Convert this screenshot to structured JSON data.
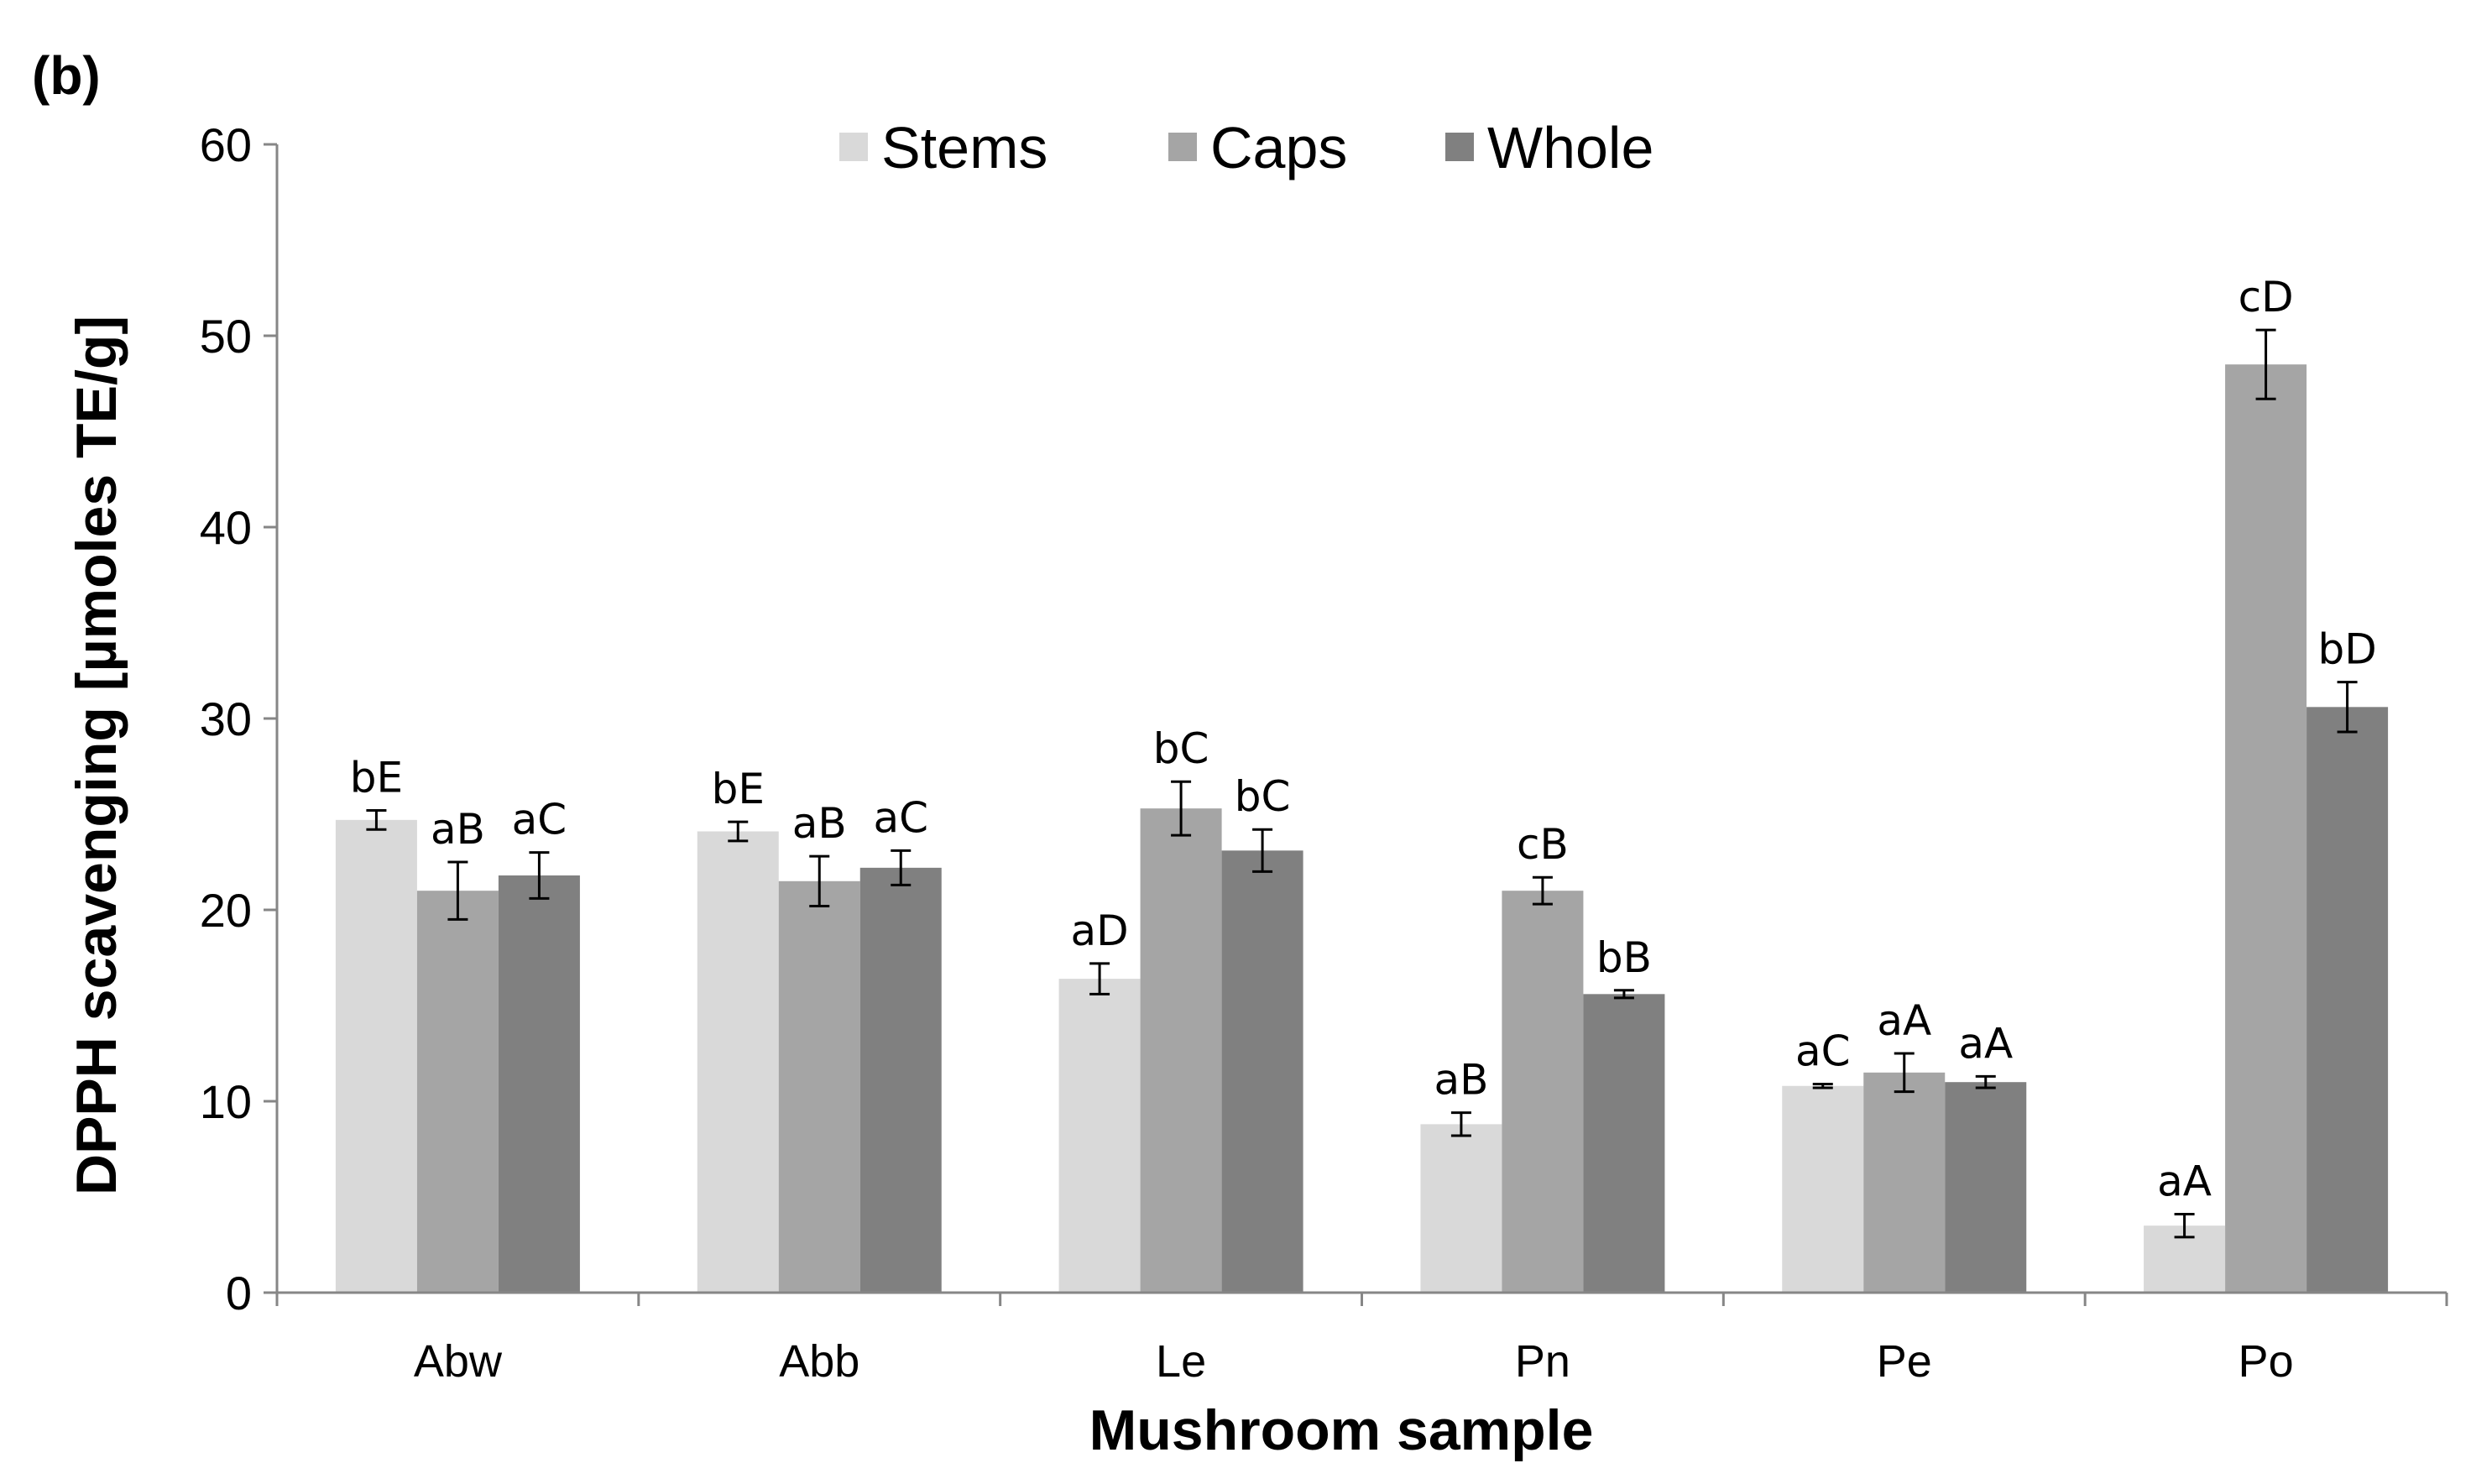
{
  "panel_label": "(b)",
  "chart_data": {
    "type": "bar",
    "title": "",
    "xlabel": "Mushroom sample",
    "ylabel": "DPPH scavenging  [µmoles TE/g]",
    "ylim": [
      0,
      60
    ],
    "yticks": [
      0,
      10,
      20,
      30,
      40,
      50,
      60
    ],
    "grid": false,
    "legend_position": "top-center",
    "categories": [
      "Abw",
      "Abb",
      "Le",
      "Pn",
      "Pe",
      "Po"
    ],
    "series": [
      {
        "name": "Stems",
        "color": "#d9d9d9",
        "values": [
          24.7,
          24.1,
          16.4,
          8.8,
          10.8,
          3.5
        ],
        "errors": [
          0.5,
          0.5,
          0.8,
          0.6,
          0.1,
          0.6
        ],
        "labels": [
          "bE",
          "bE",
          "aD",
          "aB",
          "aC",
          "aA"
        ]
      },
      {
        "name": "Caps",
        "color": "#a5a5a5",
        "values": [
          21.0,
          21.5,
          25.3,
          21.0,
          11.5,
          48.5
        ],
        "errors": [
          1.5,
          1.3,
          1.4,
          0.7,
          1.0,
          1.8
        ],
        "labels": [
          "aB",
          "aB",
          "bC",
          "cB",
          "aA",
          "cD"
        ]
      },
      {
        "name": "Whole",
        "color": "#808080",
        "values": [
          21.8,
          22.2,
          23.1,
          15.6,
          11.0,
          30.6
        ],
        "errors": [
          1.2,
          0.9,
          1.1,
          0.2,
          0.3,
          1.3
        ],
        "labels": [
          "aC",
          "aC",
          "bC",
          "bB",
          "aA",
          "bD"
        ]
      }
    ]
  }
}
